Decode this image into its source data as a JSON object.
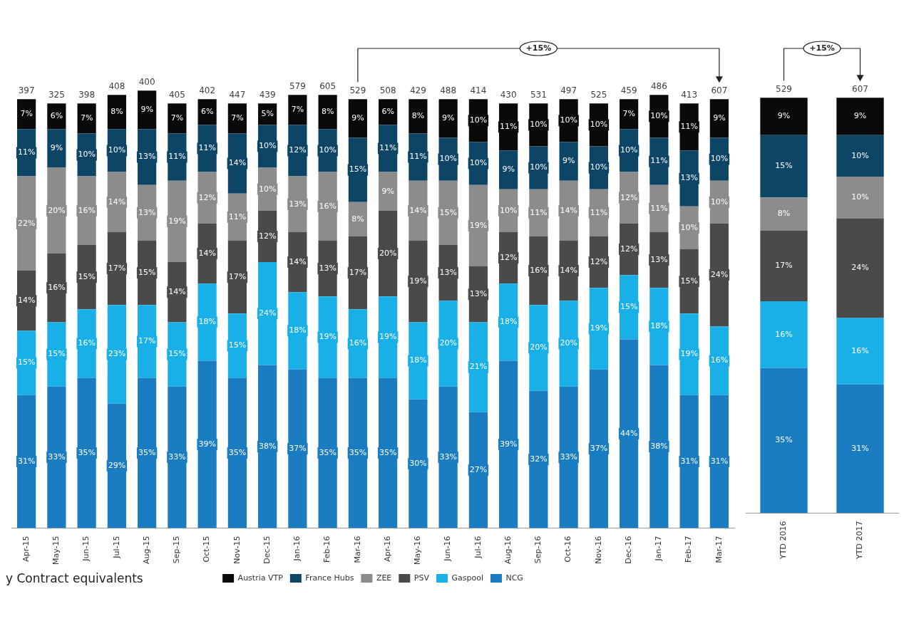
{
  "chart_data": [
    {
      "type": "bar",
      "stacked": true,
      "legend": "bottom",
      "categories": [
        "Apr-15",
        "May-15",
        "Jun-15",
        "Jul-15",
        "Aug-15",
        "Sep-15",
        "Oct-15",
        "Nov-15",
        "Dec-15",
        "Jan-16",
        "Feb-16",
        "Mar-16",
        "Apr-16",
        "May-16",
        "Jun-16",
        "Jul-16",
        "Aug-16",
        "Sep-16",
        "Oct-16",
        "Nov-16",
        "Dec-16",
        "Jan-17",
        "Feb-17",
        "Mar-17"
      ],
      "series": [
        {
          "name": "NCG",
          "color": "#1a7cc1",
          "values": [
            31,
            33,
            35,
            29,
            35,
            33,
            39,
            35,
            38,
            37,
            35,
            35,
            35,
            30,
            33,
            27,
            39,
            32,
            33,
            37,
            44,
            38,
            31,
            31
          ],
          "value_labels": [
            "31%",
            "33%",
            "35%",
            "29%",
            "35%",
            "33%",
            "39%",
            "35%",
            "38%",
            "37%",
            "35%",
            "35%",
            "35%",
            "30%",
            "33%",
            "27%",
            "39%",
            "32%",
            "33%",
            "37%",
            "44%",
            "38%",
            "31%",
            "31%"
          ]
        },
        {
          "name": "Gaspool",
          "color": "#19b0e8",
          "values": [
            15,
            15,
            16,
            23,
            17,
            15,
            18,
            15,
            24,
            18,
            19,
            16,
            19,
            18,
            20,
            21,
            18,
            20,
            20,
            19,
            15,
            18,
            19,
            16
          ],
          "value_labels": [
            "15%",
            "15%",
            "16%",
            "23%",
            "17%",
            "15%",
            "18%",
            "15%",
            "24%",
            "18%",
            "19%",
            "16%",
            "19%",
            "18%",
            "20%",
            "21%",
            "18%",
            "20%",
            "20%",
            "19%",
            "15%",
            "18%",
            "19%",
            "16%"
          ]
        },
        {
          "name": "PSV",
          "color": "#4a4a4a",
          "values": [
            14,
            16,
            15,
            17,
            15,
            14,
            14,
            17,
            12,
            14,
            13,
            17,
            20,
            19,
            13,
            13,
            12,
            16,
            14,
            12,
            12,
            13,
            15,
            24
          ],
          "value_labels": [
            "14%",
            "16%",
            "15%",
            "17%",
            "15%",
            "14%",
            "14%",
            "17%",
            "12%",
            "14%",
            "13%",
            "17%",
            "20%",
            "19%",
            "13%",
            "13%",
            "12%",
            "16%",
            "14%",
            "12%",
            "12%",
            "13%",
            "15%",
            "24%"
          ]
        },
        {
          "name": "ZEE",
          "color": "#8c8c8c",
          "values": [
            22,
            20,
            16,
            14,
            13,
            19,
            12,
            11,
            10,
            13,
            16,
            8,
            9,
            14,
            15,
            19,
            10,
            11,
            14,
            11,
            12,
            11,
            10,
            10
          ],
          "value_labels": [
            "22%",
            "20%",
            "16%",
            "14%",
            "13%",
            "19%",
            "12%",
            "11%",
            "10%",
            "13%",
            "16%",
            "8%",
            "9%",
            "14%",
            "15%",
            "19%",
            "10%",
            "11%",
            "14%",
            "11%",
            "12%",
            "11%",
            "10%",
            "10%"
          ]
        },
        {
          "name": "France Hubs",
          "color": "#0d4566",
          "values": [
            11,
            9,
            10,
            10,
            13,
            11,
            11,
            14,
            10,
            12,
            10,
            15,
            11,
            11,
            10,
            10,
            9,
            10,
            9,
            10,
            10,
            11,
            13,
            10
          ],
          "value_labels": [
            "11%",
            "9%",
            "10%",
            "10%",
            "13%",
            "11%",
            "11%",
            "14%",
            "10%",
            "12%",
            "10%",
            "15%",
            "11%",
            "11%",
            "10%",
            "10%",
            "9%",
            "10%",
            "9%",
            "10%",
            "10%",
            "11%",
            "13%",
            "10%"
          ]
        },
        {
          "name": "Austria VTP",
          "color": "#0a0a0a",
          "values": [
            7,
            6,
            7,
            8,
            9,
            7,
            6,
            7,
            5,
            7,
            8,
            9,
            6,
            8,
            9,
            10,
            11,
            10,
            10,
            10,
            7,
            10,
            11,
            9
          ],
          "value_labels": [
            "7%",
            "6%",
            "7%",
            "8%",
            "9%",
            "7%",
            "6%",
            "7%",
            "5%",
            "7%",
            "8%",
            "9%",
            "6%",
            "8%",
            "9%",
            "10%",
            "11%",
            "10%",
            "10%",
            "10%",
            "7%",
            "10%",
            "11%",
            "9%"
          ]
        }
      ],
      "annotations": [
        "+15%",
        "y Contract equivalents",
        {
          "text": "397",
          "x": "Apr-15",
          "y": 100
        },
        {
          "text": "325",
          "x": "May-15",
          "y": 99
        },
        {
          "text": "398",
          "x": "Jun-15",
          "y": 99
        },
        {
          "text": "408",
          "x": "Jul-15",
          "y": 101
        },
        {
          "text": "400",
          "x": "Aug-15",
          "y": 102
        },
        {
          "text": "405",
          "x": "Sep-15",
          "y": 99
        },
        {
          "text": "402",
          "x": "Oct-15",
          "y": 100
        },
        {
          "text": "447",
          "x": "Nov-15",
          "y": 99
        },
        {
          "text": "439",
          "x": "Dec-15",
          "y": 99
        },
        {
          "text": "579",
          "x": "Jan-16",
          "y": 101
        },
        {
          "text": "605",
          "x": "Feb-16",
          "y": 101
        },
        {
          "text": "529",
          "x": "Mar-16",
          "y": 100
        },
        {
          "text": "508",
          "x": "Apr-16",
          "y": 100
        },
        {
          "text": "429",
          "x": "May-16",
          "y": 100
        },
        {
          "text": "488",
          "x": "Jun-16",
          "y": 100
        },
        {
          "text": "414",
          "x": "Jul-16",
          "y": 100
        },
        {
          "text": "430",
          "x": "Aug-16",
          "y": 99
        },
        {
          "text": "531",
          "x": "Sep-16",
          "y": 99
        },
        {
          "text": "497",
          "x": "Oct-16",
          "y": 100
        },
        {
          "text": "525",
          "x": "Nov-16",
          "y": 99
        },
        {
          "text": "459",
          "x": "Dec-16",
          "y": 100
        },
        {
          "text": "486",
          "x": "Jan-17",
          "y": 101
        },
        {
          "text": "413",
          "x": "Feb-17",
          "y": 99
        },
        {
          "text": "607",
          "x": "Mar-17",
          "y": 100
        }
      ]
    },
    {
      "type": "bar",
      "stacked": true,
      "legend": false,
      "categories": [
        "YTD 2016",
        "YTD 2017"
      ],
      "series": [
        {
          "color": "#1a7cc1",
          "values": [
            35,
            31
          ],
          "value_labels": [
            "35%",
            "31%"
          ]
        },
        {
          "color": "#19b0e8",
          "values": [
            16,
            16
          ],
          "value_labels": [
            "16%",
            "16%"
          ]
        },
        {
          "color": "#4a4a4a",
          "values": [
            17,
            24
          ],
          "value_labels": [
            "17%",
            "24%"
          ]
        },
        {
          "color": "#8c8c8c",
          "values": [
            8,
            10
          ],
          "value_labels": [
            "8%",
            "10%"
          ]
        },
        {
          "color": "#0d4566",
          "values": [
            15,
            10
          ],
          "value_labels": [
            "15%",
            "10%"
          ]
        },
        {
          "color": "#0a0a0a",
          "values": [
            9,
            9
          ],
          "value_labels": [
            "9%",
            "9%"
          ]
        }
      ],
      "annotations": [
        "+15%",
        {
          "text": "529",
          "x": "YTD 2016",
          "y": 100
        },
        {
          "text": "607",
          "x": "YTD 2017",
          "y": 100
        }
      ]
    }
  ]
}
